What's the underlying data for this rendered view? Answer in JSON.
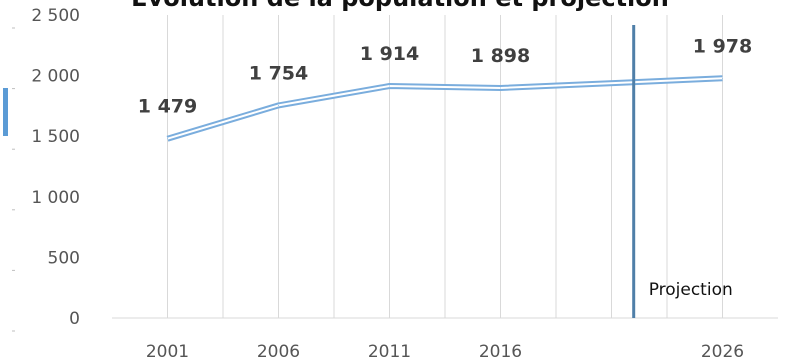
{
  "chart_data": {
    "type": "line",
    "title": "Évolution de la population et projection",
    "x": [
      2001,
      2006,
      2011,
      2016,
      2026
    ],
    "values": [
      1479,
      1754,
      1914,
      1898,
      1978
    ],
    "data_labels": [
      "1 479",
      "1 754",
      "1 914",
      "1 898",
      "1 978"
    ],
    "x_tick_labels": [
      "2001",
      "2006",
      "2011",
      "2016",
      "2026"
    ],
    "y_ticks": [
      0,
      500,
      1000,
      1500,
      2000,
      2500
    ],
    "y_tick_labels": [
      "0",
      "500",
      "1 000",
      "1 500",
      "2 000",
      "2 500"
    ],
    "ylim": [
      0,
      2500
    ],
    "xlim": [
      1998.5,
      2028.5
    ],
    "grid": "vertical",
    "projection_marker": {
      "x": 2022,
      "label": "Projection"
    },
    "line_color": "#7aaddd",
    "marker_color": "#4f7fa8"
  }
}
